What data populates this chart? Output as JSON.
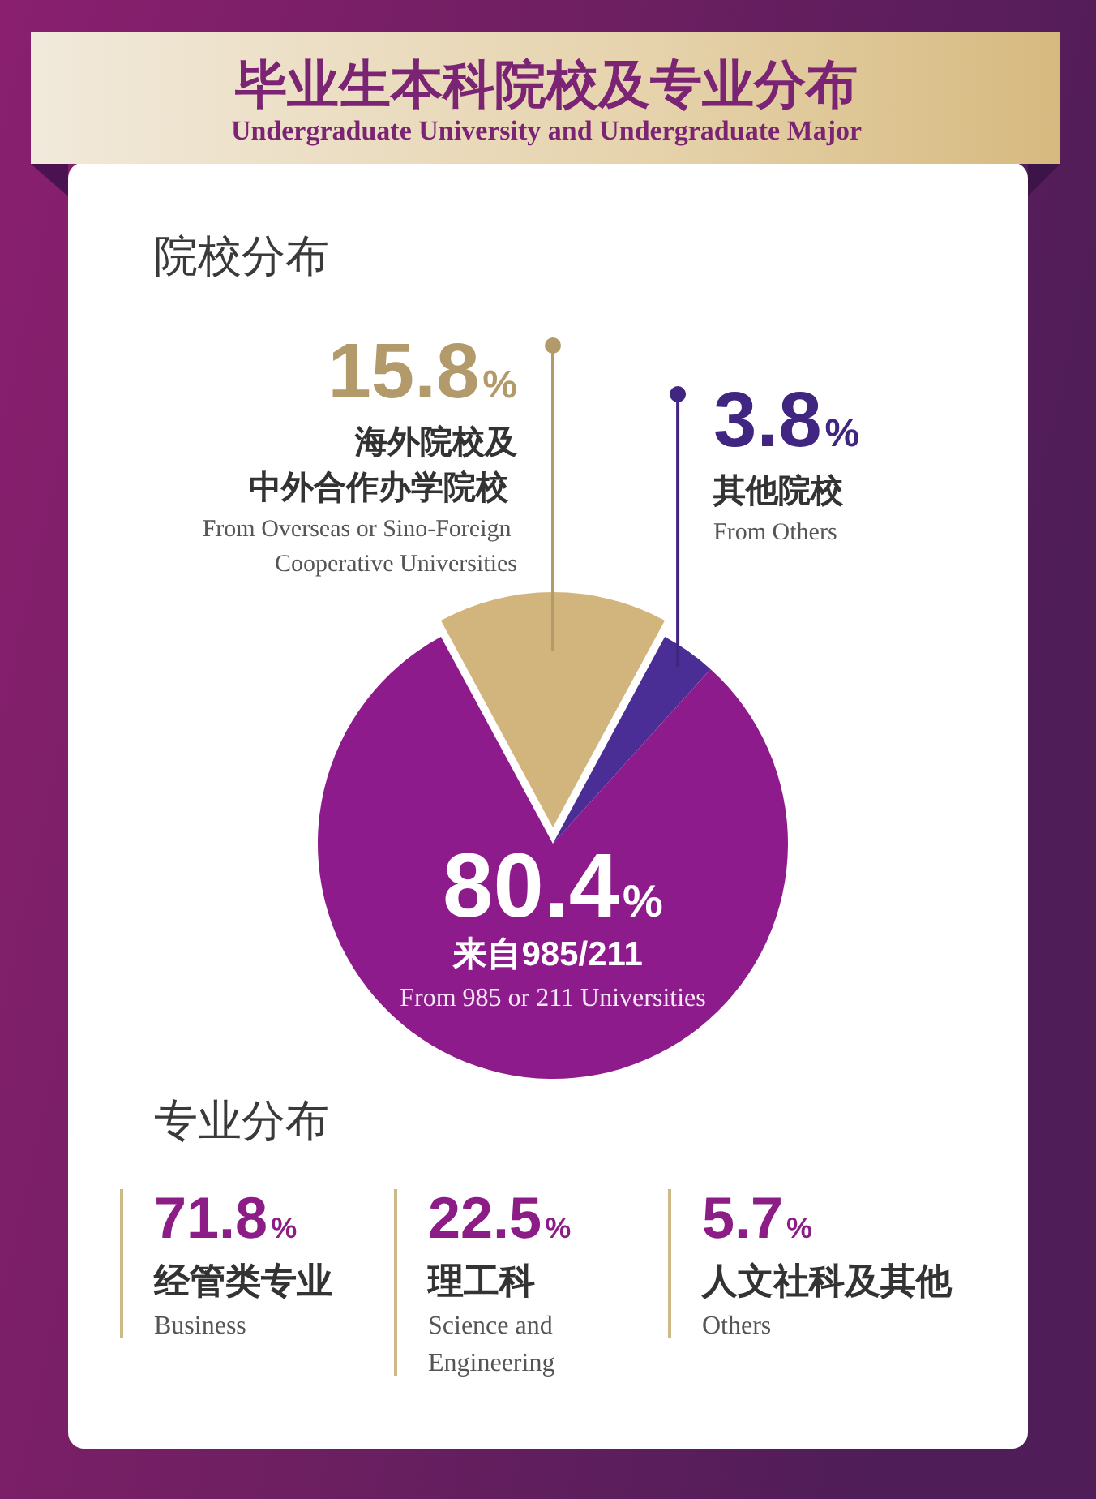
{
  "chart_data": [
    {
      "type": "other",
      "title": "毕业生本科院校及专业分布",
      "subtitle": "Undergraduate University and Undergraduate Major"
    },
    {
      "type": "pie",
      "title": "院校分布",
      "categories": [
        "海外院校及中外合作办学院校\nFrom Overseas or Sino-Foreign Cooperative Universities",
        "其他院校\nFrom Others",
        "来自985/211\nFrom 985 or 211 Universities"
      ],
      "values": [
        15.8,
        3.8,
        80.4
      ],
      "value_labels": [
        "15.8%",
        "3.8%",
        "80.4%"
      ],
      "colors": [
        "#d2b57c",
        "#4b2d96",
        "#8e1b8c"
      ]
    },
    {
      "type": "other",
      "title": "专业分布",
      "categories": [
        "经管类专业\nBusiness",
        "理工科\nScience and Engineering",
        "人文社科及其他\nOthers"
      ],
      "values": [
        71.8,
        22.5,
        5.7
      ],
      "value_labels": [
        "71.8%",
        "22.5%",
        "5.7%"
      ],
      "color": "#8c1c86"
    }
  ]
}
